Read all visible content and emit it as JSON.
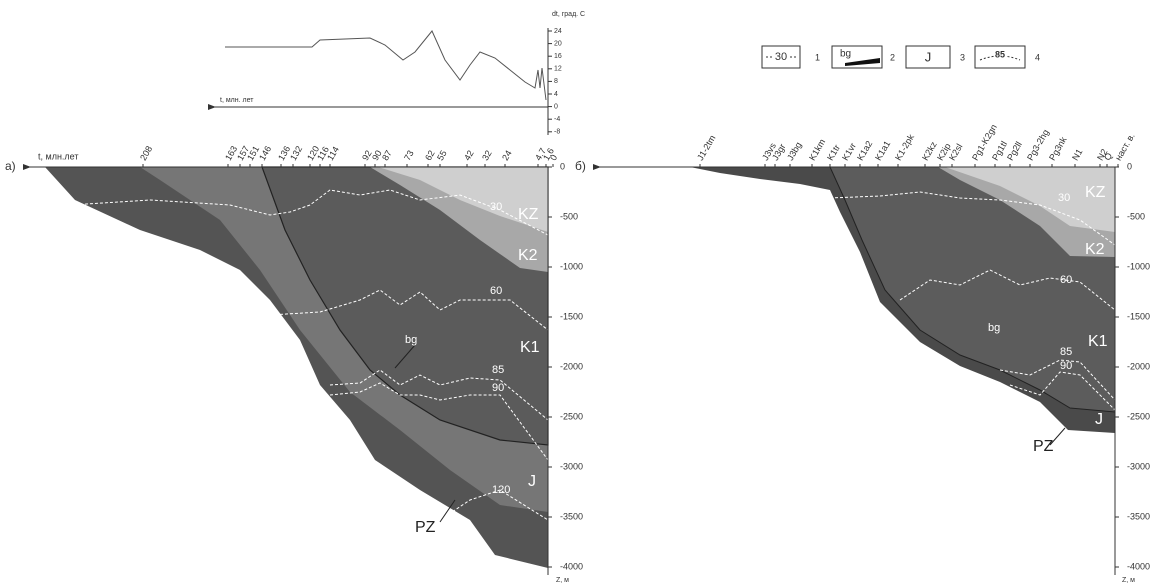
{
  "temperature_panel": {
    "y_label": "dt, град. С",
    "x_label": "t, млн. лет",
    "ticks": [
      "24",
      "20",
      "16",
      "12",
      "8",
      "4",
      "0",
      "-4",
      "-8"
    ]
  },
  "panel_a": {
    "label": "а)",
    "time_label": "t, млн.лет",
    "time_ticks": [
      "208",
      "163",
      "157",
      "151",
      "146",
      "136",
      "132",
      "120",
      "116",
      "114",
      "92",
      "90",
      "87",
      "73",
      "62",
      "55",
      "42",
      "32",
      "24",
      "4.7",
      "1.6",
      "0"
    ],
    "depth_ticks": [
      "0",
      "-500",
      "-1000",
      "-1500",
      "-2000",
      "-2500",
      "-3000",
      "-3500",
      "-4000"
    ],
    "depth_label": "Z, м",
    "layers": [
      "KZ",
      "K2",
      "K1",
      "J",
      "PZ"
    ],
    "marker": "bg",
    "isotherms": [
      "30",
      "60",
      "85",
      "90",
      "120"
    ]
  },
  "panel_b": {
    "label": "б)",
    "time_ticks": [
      "J1-2tm",
      "J3vs",
      "J3gr",
      "J3bg",
      "K1km",
      "K1tr",
      "K1vr",
      "K1a2",
      "K1a1",
      "K1-2pk",
      "K2kz",
      "K2ip",
      "K2sl",
      "Pg1-K2gn",
      "Pg1tl",
      "Pg2ll",
      "Pg3-2hg",
      "Pg3nk",
      "N1",
      "N2",
      "Q",
      "наст. в."
    ],
    "depth_ticks": [
      "0",
      "-500",
      "-1000",
      "-1500",
      "-2000",
      "-2500",
      "-3000",
      "-3500",
      "-4000"
    ],
    "depth_label": "Z, м",
    "layers": [
      "KZ",
      "K2",
      "K1",
      "J",
      "PZ"
    ],
    "marker": "bg",
    "isotherms": [
      "30",
      "60",
      "85",
      "90"
    ]
  },
  "legend": [
    {
      "sample": "30",
      "number": "1"
    },
    {
      "sample": "bg",
      "number": "2"
    },
    {
      "sample": "J",
      "number": "3"
    },
    {
      "sample": "85",
      "number": "4"
    }
  ]
}
